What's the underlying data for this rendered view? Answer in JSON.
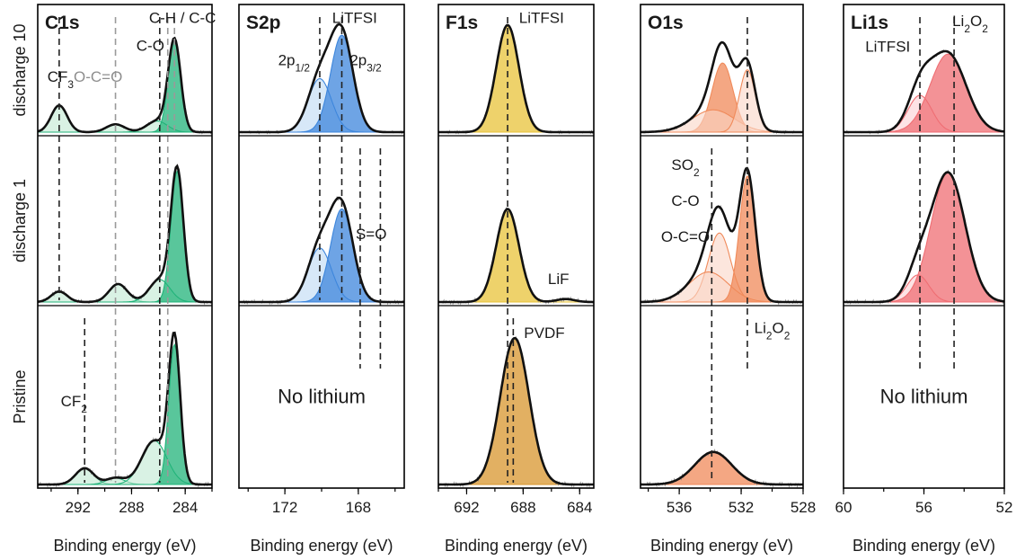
{
  "figure": {
    "row_labels": [
      "discharge 10",
      "discharge 1",
      "Pristine"
    ],
    "x_axis_label": "Binding energy (eV)"
  },
  "chart_data": [
    {
      "type": "line",
      "title": "C1s",
      "xlabel": "Binding energy (eV)",
      "xlim": [
        295,
        282
      ],
      "xticks": [
        292,
        288,
        284
      ],
      "tick_labels": [
        "292",
        "288",
        "284"
      ],
      "colors": {
        "line": "#1a1a1a",
        "fill": "#21b37a",
        "light": "#bfead2"
      },
      "ref_lines": [
        {
          "x": 293.4,
          "span": [
            0,
            1
          ],
          "style": "black"
        },
        {
          "x": 291.5,
          "span": [
            2,
            2
          ],
          "style": "black"
        },
        {
          "x": 289.2,
          "span": [
            0,
            2
          ],
          "style": "grey"
        },
        {
          "x": 285.9,
          "span": [
            0,
            2
          ],
          "style": "black"
        },
        {
          "x": 285.3,
          "span": [
            0,
            2
          ],
          "style": "grey"
        },
        {
          "x": 284.8,
          "span": [
            0,
            0
          ],
          "style": "grey"
        }
      ],
      "annotations": [
        {
          "text": "C-H / C-C",
          "row": 0,
          "x": 284.2,
          "y": 0.98
        },
        {
          "text": "C-O",
          "row": 0,
          "x": 286.6,
          "y": 0.73
        },
        {
          "text": "O-C=O",
          "row": 0,
          "x": 290.5,
          "y": 0.45,
          "grey": true
        },
        {
          "text": "CF3",
          "row": 0,
          "x": 293.3,
          "y": 0.45
        },
        {
          "text": "CF2",
          "row": 2,
          "x": 292.3,
          "y": 0.48
        }
      ],
      "rows": [
        {
          "row": "discharge 10",
          "components": [
            {
              "name": "CF3",
              "center": 293.4,
              "height": 0.24,
              "fwhm": 1.4
            },
            {
              "name": "O-C=O",
              "center": 289.2,
              "height": 0.07,
              "fwhm": 1.6
            },
            {
              "name": "C-O",
              "center": 286.1,
              "height": 0.1,
              "fwhm": 1.8
            },
            {
              "name": "C-H / C-C",
              "center": 284.8,
              "height": 0.82,
              "fwhm": 1.1
            }
          ]
        },
        {
          "row": "discharge 1",
          "components": [
            {
              "name": "CF3",
              "center": 293.4,
              "height": 0.07,
              "fwhm": 1.4
            },
            {
              "name": "O-C=O",
              "center": 289.0,
              "height": 0.12,
              "fwhm": 1.6
            },
            {
              "name": "C-O",
              "center": 285.9,
              "height": 0.15,
              "fwhm": 1.8
            },
            {
              "name": "C-H / C-C",
              "center": 284.6,
              "height": 0.87,
              "fwhm": 1.1
            }
          ]
        },
        {
          "row": "Pristine",
          "components": [
            {
              "name": "CF2",
              "center": 291.5,
              "height": 0.1,
              "fwhm": 1.6
            },
            {
              "name": "O-C=O",
              "center": 289.2,
              "height": 0.04,
              "fwhm": 1.6
            },
            {
              "name": "C-O",
              "center": 286.3,
              "height": 0.27,
              "fwhm": 2.2
            },
            {
              "name": "C-H / C-C",
              "center": 284.8,
              "height": 0.86,
              "fwhm": 1.0
            }
          ]
        }
      ]
    },
    {
      "type": "line",
      "title": "S2p",
      "xlabel": "Binding energy (eV)",
      "xlim": [
        174.5,
        165.5
      ],
      "xticks": [
        172,
        168
      ],
      "tick_labels": [
        "172",
        "168"
      ],
      "colors": {
        "line": "#1a1a1a",
        "fill": "#3d86dc",
        "light": "#bcd9f4"
      },
      "ref_lines": [
        {
          "x": 170.1,
          "span": [
            0,
            1
          ],
          "style": "black"
        },
        {
          "x": 168.9,
          "span": [
            0,
            1
          ],
          "style": "black"
        },
        {
          "x": 167.9,
          "span": [
            1,
            1
          ],
          "style": "black",
          "lower": true
        },
        {
          "x": 166.8,
          "span": [
            1,
            1
          ],
          "style": "black",
          "lower": true
        }
      ],
      "annotations": [
        {
          "text": "LiTFSI",
          "row": 0,
          "x": 168.2,
          "y": 0.98
        },
        {
          "text": "2p1/2",
          "row": 0,
          "x": 171.5,
          "y": 0.6
        },
        {
          "text": "2p3/2",
          "row": 0,
          "x": 167.6,
          "y": 0.6
        },
        {
          "text": "S=O",
          "row": 1,
          "x": 167.3,
          "y": 0.42
        },
        {
          "text": "No lithium",
          "row": 2,
          "x": 170.0,
          "y": 0.5,
          "big": true
        }
      ],
      "rows": [
        {
          "row": "discharge 10",
          "components": [
            {
              "name": "2p1/2",
              "center": 170.1,
              "height": 0.48,
              "fwhm": 1.5
            },
            {
              "name": "2p3/2",
              "center": 168.9,
              "height": 0.87,
              "fwhm": 1.45
            }
          ]
        },
        {
          "row": "discharge 1",
          "components": [
            {
              "name": "2p1/2",
              "center": 170.1,
              "height": 0.36,
              "fwhm": 1.5
            },
            {
              "name": "2p3/2",
              "center": 168.9,
              "height": 0.62,
              "fwhm": 1.45
            }
          ]
        },
        {
          "row": "Pristine",
          "components": []
        }
      ]
    },
    {
      "type": "line",
      "title": "F1s",
      "xlabel": "Binding energy (eV)",
      "xlim": [
        694,
        683
      ],
      "xticks": [
        692,
        688,
        684
      ],
      "tick_labels": [
        "692",
        "688",
        "684"
      ],
      "colors": {
        "line": "#1a1a1a",
        "fill": "#e8c33a",
        "light": "#f7e9a6"
      },
      "ref_lines": [
        {
          "x": 689.1,
          "span": [
            0,
            2
          ],
          "style": "black"
        },
        {
          "x": 688.7,
          "span": [
            2,
            2
          ],
          "style": "black"
        }
      ],
      "annotations": [
        {
          "text": "LiTFSI",
          "row": 0,
          "x": 686.7,
          "y": 0.98
        },
        {
          "text": "LiF",
          "row": 1,
          "x": 685.5,
          "y": 0.12
        },
        {
          "text": "PVDF",
          "row": 2,
          "x": 686.5,
          "y": 0.9
        }
      ],
      "rows": [
        {
          "row": "discharge 10",
          "components": [
            {
              "name": "LiTFSI",
              "center": 689.1,
              "height": 0.96,
              "fwhm": 1.9
            }
          ]
        },
        {
          "row": "discharge 1",
          "components": [
            {
              "name": "LiTFSI",
              "center": 689.1,
              "height": 0.62,
              "fwhm": 1.9
            },
            {
              "name": "LiF",
              "center": 685.0,
              "height": 0.02,
              "fwhm": 1.5
            }
          ]
        },
        {
          "row": "Pristine",
          "components": [
            {
              "name": "PVDF",
              "center": 688.6,
              "height": 0.9,
              "fwhm": 2.4,
              "fill": "#d8962e",
              "light": "#edc88e"
            }
          ]
        }
      ]
    },
    {
      "type": "line",
      "title": "O1s",
      "xlabel": "Binding energy (eV)",
      "xlim": [
        538.5,
        528
      ],
      "xticks": [
        536,
        532,
        528
      ],
      "tick_labels": [
        "536",
        "532",
        "528"
      ],
      "colors": {
        "line": "#1a1a1a",
        "fill": "#f08a5a",
        "light": "#fad5c6"
      },
      "ref_lines": [
        {
          "x": 533.9,
          "span": [
            1,
            2
          ],
          "style": "black"
        },
        {
          "x": 531.6,
          "span": [
            0,
            1
          ],
          "style": "black",
          "lower": true
        }
      ],
      "annotations": [
        {
          "text": "SO2",
          "row": 1,
          "x": 535.6,
          "y": 0.88
        },
        {
          "text": "C-O",
          "row": 1,
          "x": 535.6,
          "y": 0.64
        },
        {
          "text": "O-C=O",
          "row": 1,
          "x": 535.6,
          "y": 0.4
        },
        {
          "text": "Li2O2",
          "row": 2,
          "x": 530.0,
          "y": 0.93
        }
      ],
      "rows": [
        {
          "row": "discharge 10",
          "components": [
            {
              "name": "SO2",
              "center": 533.2,
              "height": 0.62,
              "fwhm": 1.6
            },
            {
              "name": "C-O",
              "center": 533.8,
              "height": 0.2,
              "fwhm": 3.2
            },
            {
              "name": "Li2O2",
              "center": 531.6,
              "height": 0.56,
              "fwhm": 1.2
            }
          ]
        },
        {
          "row": "discharge 1",
          "components": [
            {
              "name": "SO2",
              "center": 533.4,
              "height": 0.46,
              "fwhm": 1.7
            },
            {
              "name": "O-C=O",
              "center": 534.1,
              "height": 0.2,
              "fwhm": 3.0
            },
            {
              "name": "Li2O2",
              "center": 531.6,
              "height": 0.84,
              "fwhm": 1.2
            }
          ]
        },
        {
          "row": "Pristine",
          "components": [
            {
              "name": "O1s",
              "center": 533.8,
              "height": 0.2,
              "fwhm": 2.8
            }
          ]
        }
      ]
    },
    {
      "type": "line",
      "title": "Li1s",
      "xlabel": "Binding energy (eV)",
      "xlim": [
        60,
        52
      ],
      "xticks": [
        60,
        56,
        52
      ],
      "tick_labels": [
        "60",
        "56",
        "52"
      ],
      "colors": {
        "line": "#1a1a1a",
        "fill": "#ef6e73",
        "light": "#fbd0d3"
      },
      "ref_lines": [
        {
          "x": 56.2,
          "span": [
            0,
            1
          ],
          "style": "black",
          "lower": true
        },
        {
          "x": 54.5,
          "span": [
            0,
            1
          ],
          "style": "black",
          "lower": true
        }
      ],
      "annotations": [
        {
          "text": "LiTFSI",
          "row": 0,
          "x": 57.8,
          "y": 0.72
        },
        {
          "text": "Li2O2",
          "row": 0,
          "x": 53.7,
          "y": 0.95
        },
        {
          "text": "No lithium",
          "row": 2,
          "x": 56.0,
          "y": 0.5,
          "big": true
        }
      ],
      "rows": [
        {
          "row": "discharge 10",
          "components": [
            {
              "name": "LiTFSI",
              "center": 56.2,
              "height": 0.33,
              "fwhm": 1.4
            },
            {
              "name": "Li2O2",
              "center": 54.8,
              "height": 0.7,
              "fwhm": 2.1
            }
          ]
        },
        {
          "row": "discharge 1",
          "components": [
            {
              "name": "LiTFSI",
              "center": 56.3,
              "height": 0.18,
              "fwhm": 1.3
            },
            {
              "name": "Li2O2",
              "center": 54.8,
              "height": 0.86,
              "fwhm": 2.0
            }
          ]
        },
        {
          "row": "Pristine",
          "components": []
        }
      ]
    }
  ]
}
